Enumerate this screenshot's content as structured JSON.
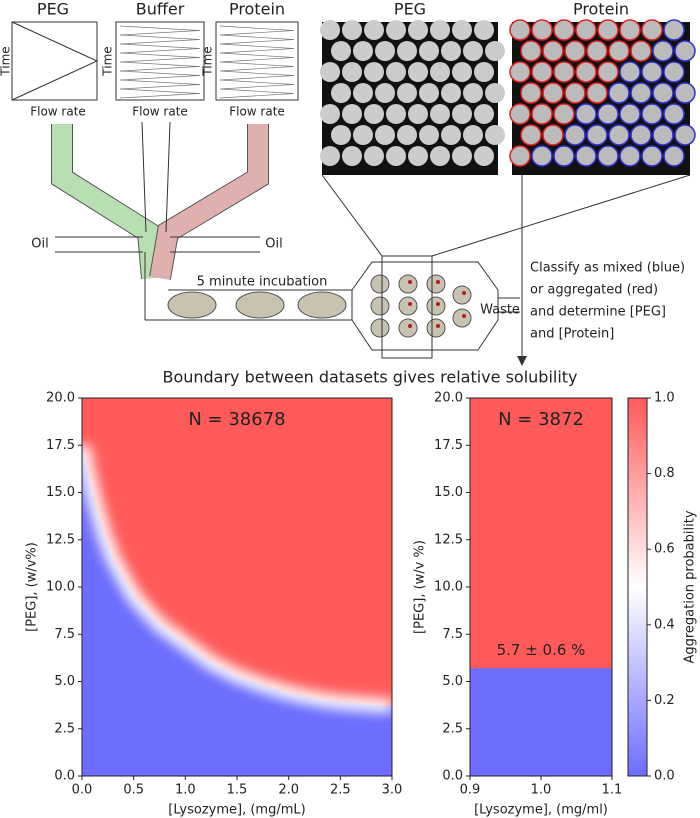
{
  "diagram": {
    "flow_plots": [
      {
        "title": "PEG",
        "y_label": "Time",
        "x_label": "Flow rate"
      },
      {
        "title": "Buffer",
        "y_label": "Time",
        "x_label": "Flow rate"
      },
      {
        "title": "Protein",
        "y_label": "Time",
        "x_label": "Flow rate"
      }
    ],
    "images": [
      {
        "title": "PEG"
      },
      {
        "title": "Protein"
      }
    ],
    "oil_left": "Oil",
    "oil_right": "Oil",
    "incubation": "5 minute incubation",
    "waste": "Waste",
    "classify": [
      "Classify as mixed (blue)",
      "or aggregated (red)",
      "and determine [PEG]",
      "and [Protein]"
    ],
    "caption": "Boundary between datasets gives relative solubility"
  },
  "chart_data": [
    {
      "type": "heatmap",
      "annotation": "N = 38678",
      "x_label": "[Lysozyme], (mg/mL)",
      "y_label": "[PEG], (w/v%)",
      "x": [
        0.0,
        0.1,
        0.2,
        0.3,
        0.5,
        0.75,
        1.0,
        1.25,
        1.5,
        1.75,
        2.0,
        2.25,
        2.5,
        2.75,
        3.0
      ],
      "values": [
        17.5,
        15.0,
        13.0,
        11.5,
        9.5,
        8.0,
        7.0,
        6.0,
        5.3,
        4.8,
        4.4,
        4.1,
        3.9,
        3.8,
        3.7
      ],
      "high_color": "#ff5a5a",
      "low_color": "#6d6dff",
      "xlim": [
        0.0,
        3.0
      ],
      "ylim": [
        0.0,
        20.0
      ],
      "xticks": [
        {
          "value": 0,
          "label": "0.0"
        },
        0.5,
        {
          "value": 1,
          "label": "1.0"
        },
        1.5,
        {
          "value": 2,
          "label": "2.0"
        },
        2.5,
        {
          "value": 3,
          "label": "3.0"
        }
      ],
      "yticks": [
        {
          "value": 0,
          "label": "0.0"
        },
        2.5,
        {
          "value": 5,
          "label": "5.0"
        },
        7.5,
        {
          "value": 10,
          "label": "10.0"
        },
        12.5,
        {
          "value": 15,
          "label": "15.0"
        },
        17.5,
        {
          "value": 20,
          "label": "20.0"
        }
      ]
    },
    {
      "type": "heatmap",
      "annotation": "N = 3872",
      "boundary_label": "5.7 ± 0.6 %",
      "x_label": "[Lysozyme], (mg/ml)",
      "y_label": "[PEG], (w/v %)",
      "x": [
        0.9,
        1.1
      ],
      "values": [
        5.7,
        5.7
      ],
      "high_color": "#ff5a5a",
      "low_color": "#6d6dff",
      "xlim": [
        0.9,
        1.1
      ],
      "ylim": [
        0.0,
        20.0
      ],
      "xticks": [
        0.9,
        {
          "value": 1,
          "label": "1.0"
        },
        1.1
      ],
      "yticks": [
        {
          "value": 0,
          "label": "0.0"
        },
        2.5,
        {
          "value": 5,
          "label": "5.0"
        },
        7.5,
        {
          "value": 10,
          "label": "10.0"
        },
        12.5,
        {
          "value": 15,
          "label": "15.0"
        },
        17.5,
        {
          "value": 20,
          "label": "20.0"
        }
      ],
      "colorbar": {
        "label": "Aggregation probability",
        "lim": [
          0,
          1
        ],
        "ticks": [
          {
            "value": 0,
            "label": "0.0"
          },
          0.2,
          0.4,
          0.6,
          0.8,
          {
            "value": 1,
            "label": "1.0"
          }
        ]
      }
    }
  ]
}
